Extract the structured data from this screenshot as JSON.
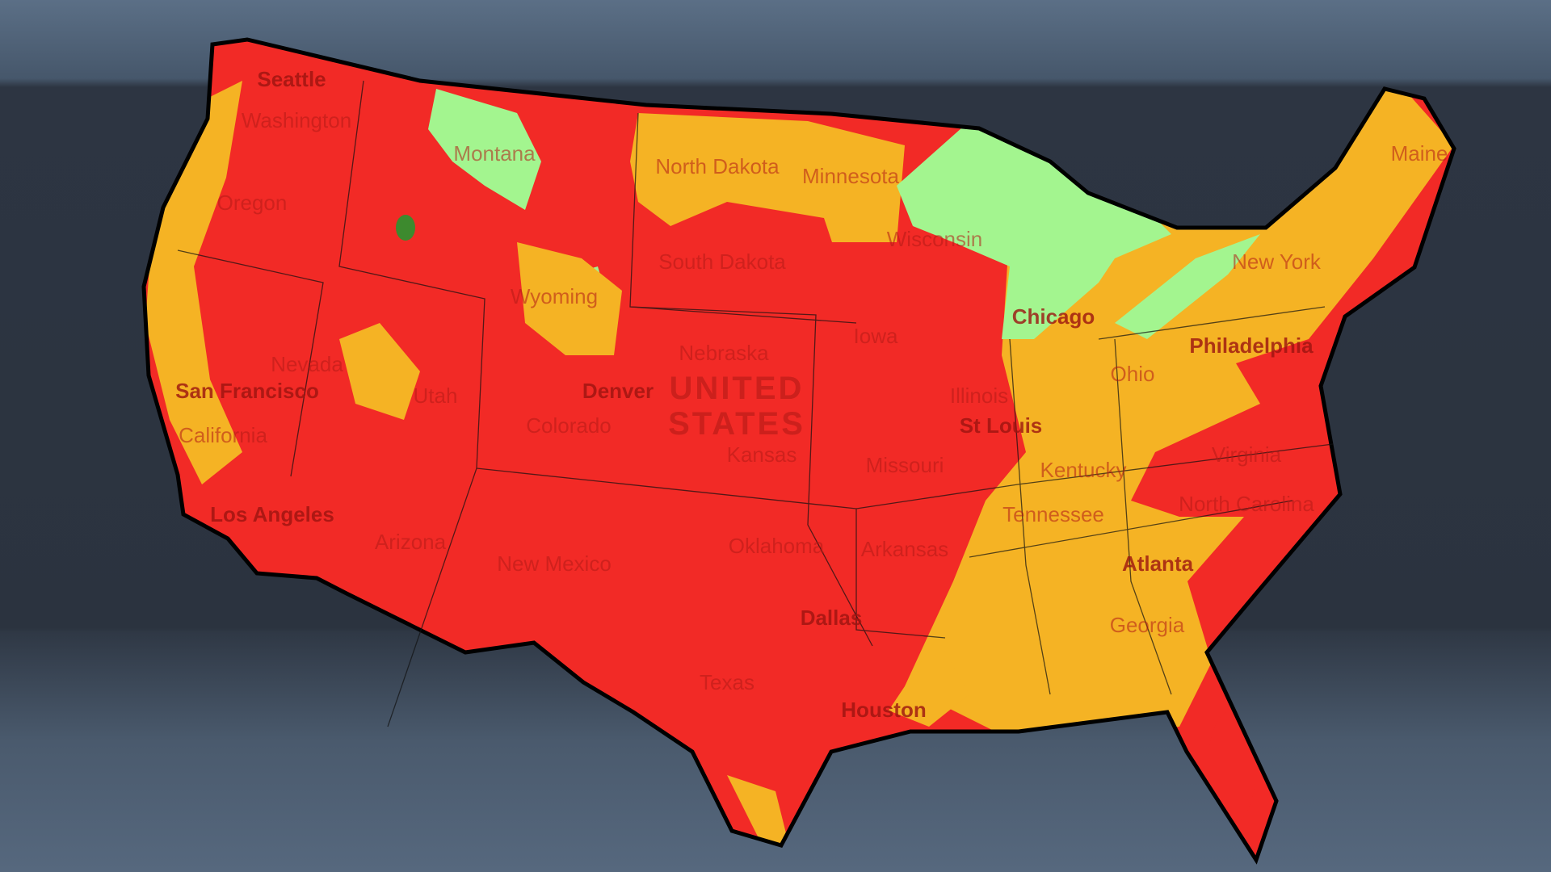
{
  "map": {
    "colors": {
      "high": "#f22a26",
      "moderate": "#f5b324",
      "low": "#a3f58f",
      "lowest": "#3d8a2e",
      "border": "#000000",
      "background": "#2c3440"
    },
    "country_label": [
      "UNITED",
      "STATES"
    ],
    "state_labels": [
      "Washington",
      "Oregon",
      "Montana",
      "North Dakota",
      "Minnesota",
      "Wisconsin",
      "South Dakota",
      "Wyoming",
      "Nebraska",
      "Iowa",
      "Ohio",
      "New York",
      "Maine",
      "Nevada",
      "Utah",
      "Colorado",
      "Kansas",
      "Illinois",
      "Missouri",
      "Kentucky",
      "Virginia",
      "California",
      "Arizona",
      "New Mexico",
      "Oklahoma",
      "Arkansas",
      "Tennessee",
      "North Carolina",
      "Georgia",
      "Texas"
    ],
    "city_labels": [
      "Seattle",
      "San Francisco",
      "Los Angeles",
      "Denver",
      "Chicago",
      "Philadelphia",
      "St Louis",
      "Dallas",
      "Houston",
      "Atlanta"
    ]
  }
}
